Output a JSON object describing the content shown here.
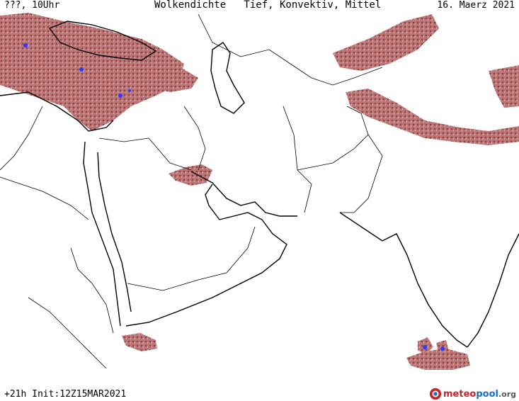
{
  "header": {
    "valid_label": "???, 10Uhr",
    "title": "Wolkendichte   Tief, Konvektiv, Mittel",
    "date": "16. Maerz 2021"
  },
  "footer": {
    "run_label": "+21h Init:12Z15MAR2021",
    "logo": {
      "part_meteo": "meteo",
      "part_pool": "pool",
      "part_org": ".org",
      "icon": "meteopool-logo-icon"
    }
  },
  "colors": {
    "background": "#ffffff",
    "borders": "#000000",
    "cloud_dense": "#8c2f2f",
    "cloud_light": "#d9a3a3",
    "convective": "#2b3bff"
  }
}
